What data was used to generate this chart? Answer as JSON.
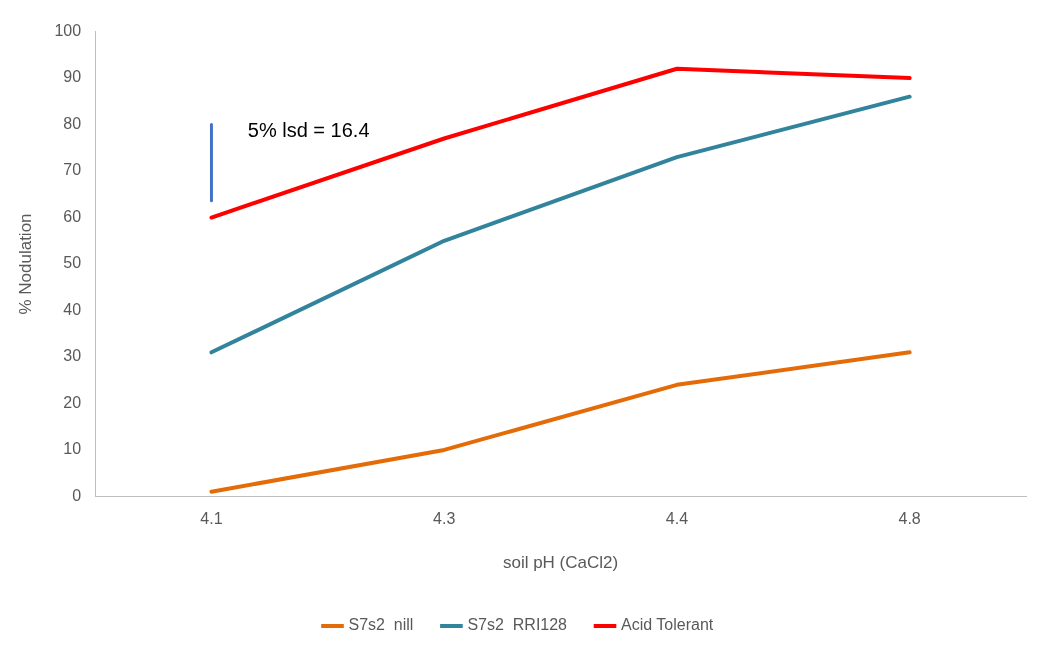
{
  "chart_data": {
    "type": "line",
    "xlabel": "soil pH (CaCl2)",
    "ylabel": "% Nodulation",
    "categories": [
      "4.1",
      "4.3",
      "4.4",
      "4.8"
    ],
    "series": [
      {
        "name": "S7s2  nill",
        "color": "#e36c09",
        "values": [
          1,
          10,
          24,
          31
        ]
      },
      {
        "name": "S7s2  RRI128",
        "color": "#31849b",
        "values": [
          31,
          55,
          73,
          86
        ]
      },
      {
        "name": "Acid Tolerant",
        "color": "#ff0000",
        "values": [
          60,
          77,
          92,
          90
        ]
      },
      {
        "type": "line",
        "color": "#4472c4",
        "x": [
          "4.1",
          "4.1"
        ],
        "values": [
          63.6,
          80
        ]
      }
    ],
    "ylim": [
      0,
      100
    ],
    "yticks": [
      0,
      10,
      20,
      30,
      40,
      50,
      60,
      70,
      80,
      90,
      100
    ],
    "grid": false,
    "legend": "bottom",
    "marker": "none",
    "line_style": "solid",
    "annotations": [
      "5% lsd = 16.4"
    ]
  }
}
